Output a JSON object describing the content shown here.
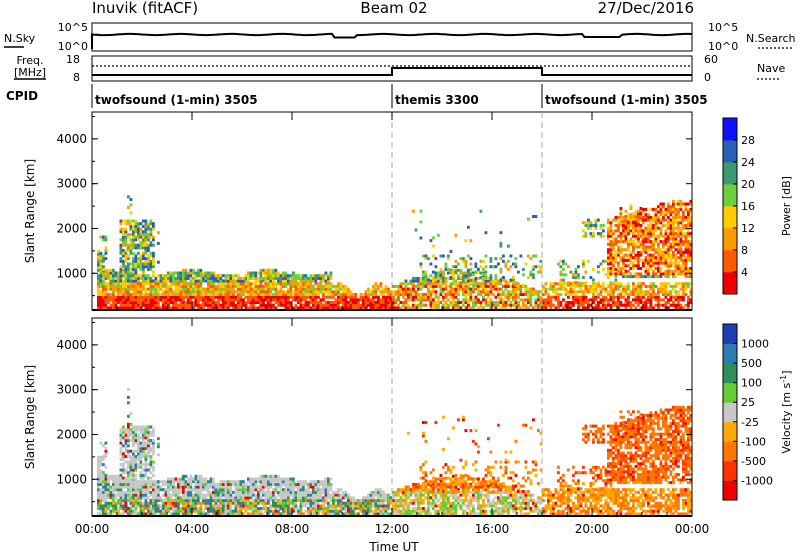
{
  "header": {
    "station": "Inuvik (fitACF)",
    "beam": "Beam 02",
    "date": "27/Dec/2016"
  },
  "params": {
    "nsky_label": "N.Sky",
    "nsky_ticks": [
      "10^5",
      "10^0"
    ],
    "nsearch_label": "N.Search",
    "nsearch_ticks": [
      "10^5",
      "10^0"
    ],
    "freq_label_line1": "Freq.",
    "freq_label_line2": "[MHz]",
    "freq_ticks": [
      "18",
      "8"
    ],
    "nave_label": "Nave",
    "nave_ticks": [
      "60",
      "0"
    ],
    "cpid_label": "CPID"
  },
  "modes": [
    {
      "label": "twofsound (1-min) 3505",
      "start_hour": 0,
      "end_hour": 12
    },
    {
      "label": "themis 3300",
      "start_hour": 12,
      "end_hour": 18
    },
    {
      "label": "twofsound (1-min) 3505",
      "start_hour": 18,
      "end_hour": 24
    }
  ],
  "chart_data": [
    {
      "type": "heatmap",
      "name": "power",
      "ylabel": "Slant Range [km]",
      "y_ticks": [
        1000,
        2000,
        3000,
        4000
      ],
      "ylim": [
        180,
        4600
      ],
      "x_tick_labels": [
        "00:00",
        "04:00",
        "08:00",
        "12:00",
        "16:00",
        "20:00",
        "00:00"
      ],
      "xlim_hours": [
        0,
        24
      ],
      "colorbar_label": "Power [dB]",
      "colorbar_ticks": [
        "4",
        "8",
        "12",
        "16",
        "20",
        "24",
        "28"
      ],
      "colorbar_colors": [
        "#1010ff",
        "#2a5fb8",
        "#3c9b6e",
        "#6ccf3e",
        "#ffcc00",
        "#ff9900",
        "#ff5a00",
        "#ee0000"
      ],
      "mode_boundaries_hours": [
        12,
        18
      ]
    },
    {
      "type": "heatmap",
      "name": "velocity",
      "ylabel": "Slant Range [km]",
      "y_ticks": [
        1000,
        2000,
        3000,
        4000
      ],
      "ylim": [
        180,
        4600
      ],
      "x_tick_labels": [
        "00:00",
        "04:00",
        "08:00",
        "12:00",
        "16:00",
        "20:00",
        "00:00"
      ],
      "xlim_hours": [
        0,
        24
      ],
      "xlabel": "Time UT",
      "colorbar_label": "Velocity [m s",
      "colorbar_exponent": "-1",
      "colorbar_label_close": "]",
      "colorbar_ticks": [
        "1000",
        "500",
        "100",
        "25",
        "-25",
        "-100",
        "-500",
        "-1000"
      ],
      "colorbar_colors": [
        "#1f3fb0",
        "#2c7db0",
        "#2e8f5a",
        "#66cc33",
        "#c8c8c8",
        "#ffaa00",
        "#ff7700",
        "#ff3300",
        "#ee0000"
      ],
      "mode_boundaries_hours": [
        12,
        18
      ]
    }
  ]
}
